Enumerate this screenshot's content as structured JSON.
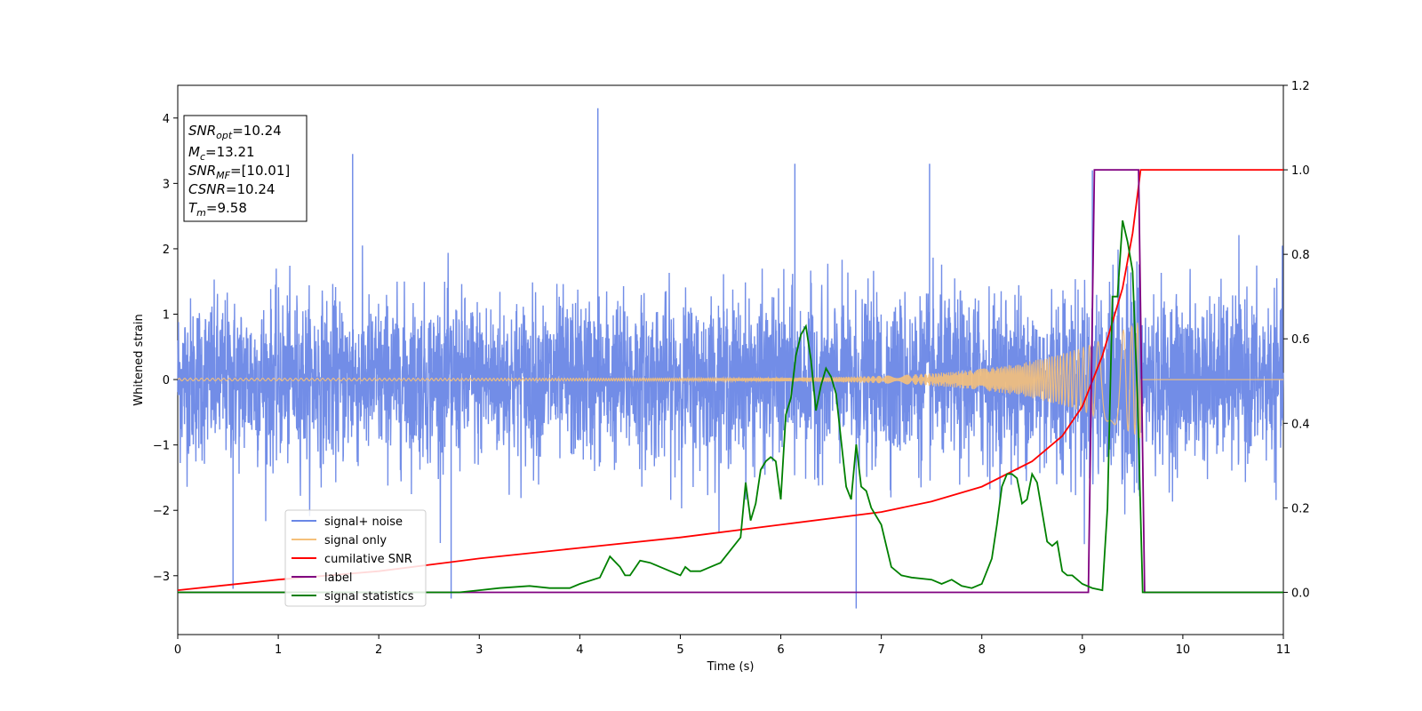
{
  "chart_data": {
    "type": "line",
    "xlabel": "Time (s)",
    "ylabel": "Whitened strain",
    "xlim": [
      0,
      11
    ],
    "ylim_left": [
      -3.9,
      4.5
    ],
    "ylim_right": [
      -0.1,
      1.2
    ],
    "x_ticks": [
      "0",
      "1",
      "2",
      "3",
      "4",
      "5",
      "6",
      "7",
      "8",
      "9",
      "10",
      "11"
    ],
    "y_left_ticks": [
      "−3",
      "−2",
      "−1",
      "0",
      "1",
      "2",
      "3",
      "4"
    ],
    "y_right_ticks": [
      "0.0",
      "0.2",
      "0.4",
      "0.6",
      "0.8",
      "1.0",
      "1.2"
    ],
    "grid": false,
    "legend_position": "lower-left",
    "annotation": {
      "lines": [
        {
          "sym": "SNR",
          "sub": "opt",
          "val": "=10.24"
        },
        {
          "sym": "M",
          "sub": "c",
          "val": "=13.21"
        },
        {
          "sym": "SNR",
          "sub": "MF",
          "val": "=[10.01]"
        },
        {
          "sym": "CSNR",
          "sub": "",
          "val": "=10.24"
        },
        {
          "sym": "T",
          "sub": "m",
          "val": "=9.58"
        }
      ]
    },
    "series": [
      {
        "name": "signal+ noise",
        "axis": "left",
        "color": "#6a87e6",
        "description_stats": {
          "typical_range": [
            -1.7,
            1.7
          ],
          "max": 4.15,
          "min": -3.5
        }
      },
      {
        "name": "signal only",
        "axis": "left",
        "color": "#f5c07a",
        "chirp": {
          "start_amplitude": 0.02,
          "peak_amplitude": 0.9,
          "merger_time": 9.58
        }
      },
      {
        "name": "cumilative SNR",
        "axis": "right",
        "color": "#ff0000",
        "x": [
          0,
          1,
          2,
          3,
          4,
          5,
          6,
          7,
          7.5,
          8,
          8.5,
          8.8,
          9.0,
          9.2,
          9.4,
          9.5,
          9.58,
          9.6,
          11
        ],
        "y": [
          0.005,
          0.03,
          0.05,
          0.08,
          0.105,
          0.13,
          0.16,
          0.19,
          0.215,
          0.25,
          0.31,
          0.37,
          0.44,
          0.56,
          0.72,
          0.85,
          1.0,
          1.0,
          1.0
        ]
      },
      {
        "name": "label",
        "axis": "right",
        "color": "#800080",
        "x": [
          0,
          9.06,
          9.12,
          9.56,
          9.62,
          11
        ],
        "y": [
          0,
          0,
          1,
          1,
          0,
          0
        ]
      },
      {
        "name": "signal statistics",
        "axis": "right",
        "color": "#008000",
        "x": [
          0,
          1,
          2,
          2.8,
          3.0,
          3.2,
          3.5,
          3.7,
          3.9,
          4.0,
          4.2,
          4.3,
          4.4,
          4.45,
          4.5,
          4.6,
          4.7,
          4.8,
          4.9,
          5.0,
          5.05,
          5.1,
          5.2,
          5.3,
          5.4,
          5.5,
          5.6,
          5.65,
          5.7,
          5.75,
          5.8,
          5.85,
          5.9,
          5.95,
          6.0,
          6.05,
          6.1,
          6.15,
          6.2,
          6.25,
          6.3,
          6.35,
          6.4,
          6.45,
          6.5,
          6.55,
          6.6,
          6.65,
          6.7,
          6.75,
          6.8,
          6.85,
          6.9,
          7.0,
          7.1,
          7.2,
          7.3,
          7.5,
          7.6,
          7.7,
          7.8,
          7.9,
          8.0,
          8.05,
          8.1,
          8.15,
          8.2,
          8.25,
          8.3,
          8.35,
          8.4,
          8.45,
          8.5,
          8.55,
          8.6,
          8.65,
          8.7,
          8.75,
          8.8,
          8.85,
          8.9,
          9.0,
          9.1,
          9.2,
          9.25,
          9.3,
          9.35,
          9.4,
          9.45,
          9.5,
          9.55,
          9.6,
          9.62,
          10,
          11
        ],
        "y": [
          0,
          0,
          0,
          0,
          0.005,
          0.01,
          0.015,
          0.01,
          0.01,
          0.02,
          0.035,
          0.085,
          0.06,
          0.04,
          0.04,
          0.075,
          0.07,
          0.06,
          0.05,
          0.04,
          0.06,
          0.05,
          0.05,
          0.06,
          0.07,
          0.1,
          0.13,
          0.26,
          0.17,
          0.21,
          0.29,
          0.31,
          0.32,
          0.31,
          0.22,
          0.42,
          0.46,
          0.56,
          0.61,
          0.63,
          0.55,
          0.43,
          0.49,
          0.53,
          0.51,
          0.47,
          0.36,
          0.25,
          0.22,
          0.35,
          0.25,
          0.24,
          0.2,
          0.16,
          0.06,
          0.04,
          0.035,
          0.03,
          0.02,
          0.03,
          0.015,
          0.01,
          0.02,
          0.05,
          0.08,
          0.16,
          0.25,
          0.28,
          0.28,
          0.27,
          0.21,
          0.22,
          0.28,
          0.26,
          0.19,
          0.12,
          0.11,
          0.12,
          0.05,
          0.04,
          0.04,
          0.02,
          0.01,
          0.005,
          0.2,
          0.7,
          0.7,
          0.88,
          0.83,
          0.76,
          0.45,
          0.0,
          0.0,
          0,
          0
        ]
      }
    ]
  }
}
